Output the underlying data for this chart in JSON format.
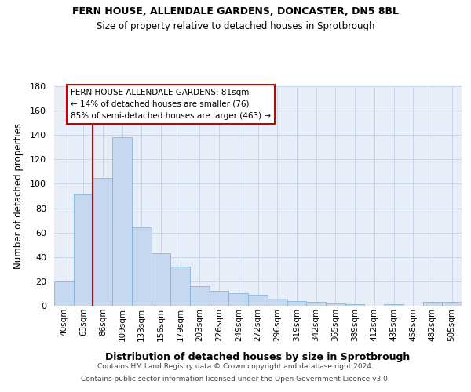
{
  "title1": "FERN HOUSE, ALLENDALE GARDENS, DONCASTER, DN5 8BL",
  "title2": "Size of property relative to detached houses in Sprotbrough",
  "xlabel": "Distribution of detached houses by size in Sprotbrough",
  "ylabel": "Number of detached properties",
  "categories": [
    "40sqm",
    "63sqm",
    "86sqm",
    "109sqm",
    "133sqm",
    "156sqm",
    "179sqm",
    "203sqm",
    "226sqm",
    "249sqm",
    "272sqm",
    "296sqm",
    "319sqm",
    "342sqm",
    "365sqm",
    "389sqm",
    "412sqm",
    "435sqm",
    "458sqm",
    "482sqm",
    "505sqm"
  ],
  "values": [
    20,
    91,
    105,
    138,
    64,
    43,
    32,
    16,
    12,
    10,
    9,
    6,
    4,
    3,
    2,
    1,
    0,
    1,
    0,
    3,
    3
  ],
  "bar_color": "#c5d8f0",
  "bar_edge_color": "#7aadd4",
  "vline_color": "#cc0000",
  "annotation_text": "FERN HOUSE ALLENDALE GARDENS: 81sqm\n← 14% of detached houses are smaller (76)\n85% of semi-detached houses are larger (463) →",
  "annotation_box_color": "#ffffff",
  "annotation_box_edge_color": "#cc0000",
  "ylim": [
    0,
    180
  ],
  "yticks": [
    0,
    20,
    40,
    60,
    80,
    100,
    120,
    140,
    160,
    180
  ],
  "footer1": "Contains HM Land Registry data © Crown copyright and database right 2024.",
  "footer2": "Contains public sector information licensed under the Open Government Licence v3.0.",
  "bg_color": "#ffffff",
  "grid_color": "#c8d4e8",
  "plot_bg_color": "#e8eef8"
}
